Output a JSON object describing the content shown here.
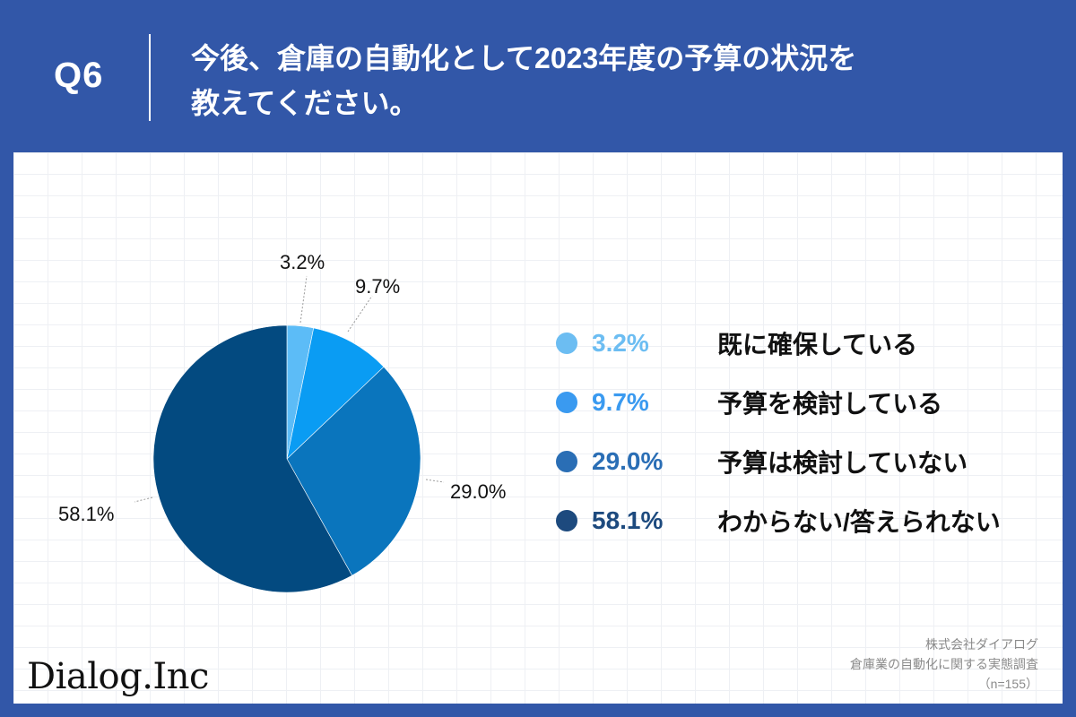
{
  "header": {
    "question_number": "Q6",
    "title_line1": "今後、倉庫の自動化として2023年度の予算の状況を",
    "title_line2": "教えてください。"
  },
  "colors": {
    "background": "#3257a8",
    "slice_1": "#5cbcf7",
    "slice_2": "#0a9cf3",
    "slice_3": "#0a75bd",
    "slice_4": "#034a80",
    "legend_1": "#6cbdf2",
    "legend_2": "#3a9af0",
    "legend_3": "#2a6eb5",
    "legend_4": "#1d4a7e"
  },
  "pie_labels": {
    "slice_1": "3.2%",
    "slice_2": "9.7%",
    "slice_3": "29.0%",
    "slice_4": "58.1%"
  },
  "legend": [
    {
      "pct": "3.2%",
      "text": "既に確保している"
    },
    {
      "pct": "9.7%",
      "text": "予算を検討している"
    },
    {
      "pct": "29.0%",
      "text": "予算は検討していない"
    },
    {
      "pct": "58.1%",
      "text": "わからない/答えられない"
    }
  ],
  "footer": {
    "logo": "Dialog.Inc",
    "company": "株式会社ダイアログ",
    "survey": "倉庫業の自動化に関する実態調査",
    "sample": "（n=155）"
  },
  "chart_data": {
    "type": "pie",
    "title": "今後、倉庫の自動化として2023年度の予算の状況を教えてください。",
    "categories": [
      "既に確保している",
      "予算を検討している",
      "予算は検討していない",
      "わからない/答えられない"
    ],
    "values": [
      3.2,
      9.7,
      29.0,
      58.1
    ],
    "unit": "%",
    "start_angle": "12 o'clock, clockwise",
    "legend_position": "right",
    "sample_size": "n=155"
  }
}
